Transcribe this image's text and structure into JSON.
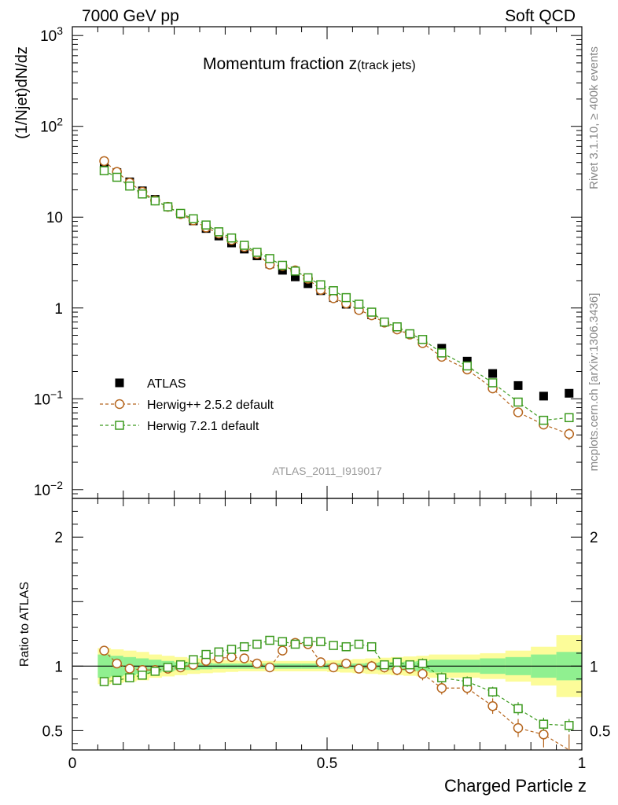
{
  "header": {
    "left": "7000 GeV pp",
    "right": "Soft QCD"
  },
  "side_text": {
    "rivet": "Rivet 3.1.10, ≥ 400k events",
    "mcplots": "mcplots.cern.ch [arXiv:1306.3436]"
  },
  "chart_data": [
    {
      "type": "scatter",
      "title": "Momentum fraction ",
      "title_var": "z",
      "title_sub": "(track jets)",
      "ylabel": "(1/Njet)dN/dz",
      "y_scale": "log",
      "ylim": [
        0.008,
        1250
      ],
      "xlim": [
        0,
        1
      ],
      "y_ticks": [
        {
          "v": 1000,
          "base": "10",
          "exp": "3"
        },
        {
          "v": 100,
          "base": "10",
          "exp": "2"
        },
        {
          "v": 10,
          "base": "10",
          "exp": ""
        },
        {
          "v": 1,
          "base": "1",
          "exp": ""
        },
        {
          "v": 0.1,
          "base": "10",
          "exp": "−1"
        },
        {
          "v": 0.01,
          "base": "10",
          "exp": "−2"
        }
      ],
      "watermark": "ATLAS_2011_I919017",
      "legend_position": "bottom-left",
      "x": [
        0.0625,
        0.0875,
        0.1125,
        0.1375,
        0.1625,
        0.1875,
        0.2125,
        0.2375,
        0.2625,
        0.2875,
        0.3125,
        0.3375,
        0.3625,
        0.3875,
        0.4125,
        0.4375,
        0.4625,
        0.4875,
        0.5125,
        0.5375,
        0.5625,
        0.5875,
        0.6125,
        0.6375,
        0.6625,
        0.6875,
        0.725,
        0.775,
        0.825,
        0.875,
        0.925,
        0.975
      ],
      "series": [
        {
          "name": "ATLAS",
          "marker": "filled-square",
          "color": "#000000",
          "dashed": false,
          "values": [
            37,
            31,
            24.5,
            19.5,
            15.7,
            13.0,
            10.9,
            9.1,
            7.5,
            6.2,
            5.2,
            4.45,
            3.75,
            3.05,
            2.6,
            2.2,
            1.85,
            1.55,
            1.3,
            1.1,
            0.98,
            0.84,
            0.7,
            0.6,
            0.52,
            0.44,
            0.36,
            0.26,
            0.19,
            0.14,
            0.107,
            0.115
          ]
        },
        {
          "name": "Herwig++ 2.5.2 default",
          "marker": "open-circle",
          "color": "#b5651d",
          "dashed": true,
          "values": [
            41.5,
            31.5,
            24.0,
            19.0,
            15.3,
            13.0,
            10.8,
            9.2,
            7.7,
            6.6,
            5.6,
            4.7,
            3.95,
            3.0,
            2.9,
            2.6,
            2.1,
            1.58,
            1.28,
            1.12,
            0.95,
            0.83,
            0.69,
            0.58,
            0.51,
            0.41,
            0.29,
            0.21,
            0.13,
            0.071,
            0.052,
            0.041
          ],
          "errors": [
            0,
            0,
            0,
            0,
            0,
            0,
            0,
            0,
            0,
            0,
            0,
            0,
            0,
            0,
            0,
            0,
            0,
            0,
            0,
            0,
            0,
            0,
            0,
            0,
            0,
            0.01,
            0.01,
            0.01,
            0.01,
            0.006,
            0.005,
            0.006
          ]
        },
        {
          "name": "Herwig 7.2.1 default",
          "marker": "open-square",
          "color": "#3c9a1e",
          "dashed": true,
          "values": [
            32.5,
            27.5,
            22.0,
            18.0,
            15.1,
            13.0,
            11.0,
            9.6,
            8.2,
            6.9,
            5.9,
            4.9,
            4.1,
            3.5,
            2.95,
            2.55,
            2.15,
            1.8,
            1.55,
            1.3,
            1.1,
            0.9,
            0.7,
            0.62,
            0.52,
            0.45,
            0.32,
            0.23,
            0.15,
            0.092,
            0.058,
            0.062
          ],
          "errors": [
            0,
            0,
            0,
            0,
            0,
            0,
            0,
            0,
            0,
            0,
            0,
            0,
            0,
            0,
            0,
            0,
            0,
            0,
            0,
            0,
            0,
            0,
            0,
            0,
            0,
            0.01,
            0.01,
            0.01,
            0.01,
            0.006,
            0.005,
            0.006
          ]
        }
      ]
    },
    {
      "type": "scatter",
      "ylabel": "Ratio to ATLAS",
      "xlabel": "Charged Particle z",
      "ylim": [
        0.35,
        2.3
      ],
      "xlim": [
        0,
        1
      ],
      "y_ticks": [
        2,
        1,
        0.5
      ],
      "x_ticks": [
        {
          "v": 0,
          "label": "0"
        },
        {
          "v": 0.5,
          "label": "0.5"
        },
        {
          "v": 1,
          "label": "1"
        }
      ],
      "bins": [
        0.05,
        0.075,
        0.1,
        0.125,
        0.15,
        0.175,
        0.2,
        0.225,
        0.25,
        0.275,
        0.3,
        0.325,
        0.35,
        0.375,
        0.4,
        0.425,
        0.45,
        0.475,
        0.5,
        0.525,
        0.55,
        0.575,
        0.6,
        0.625,
        0.65,
        0.675,
        0.7,
        0.75,
        0.8,
        0.85,
        0.9,
        0.95,
        1.0
      ],
      "band_stat": [
        0.09,
        0.08,
        0.07,
        0.06,
        0.05,
        0.04,
        0.03,
        0.03,
        0.025,
        0.02,
        0.02,
        0.02,
        0.02,
        0.02,
        0.02,
        0.02,
        0.02,
        0.02,
        0.02,
        0.02,
        0.02,
        0.025,
        0.03,
        0.03,
        0.035,
        0.04,
        0.05,
        0.05,
        0.06,
        0.07,
        0.09,
        0.11
      ],
      "band_total": [
        0.14,
        0.13,
        0.12,
        0.11,
        0.09,
        0.08,
        0.07,
        0.06,
        0.055,
        0.05,
        0.045,
        0.04,
        0.04,
        0.04,
        0.04,
        0.04,
        0.04,
        0.04,
        0.045,
        0.05,
        0.055,
        0.06,
        0.065,
        0.07,
        0.075,
        0.08,
        0.09,
        0.09,
        0.1,
        0.12,
        0.15,
        0.24
      ],
      "band_colors": {
        "stat": "#90f090",
        "total": "#fcfc99"
      },
      "series": [
        {
          "name": "Herwig++ 2.5.2 default",
          "marker": "open-circle",
          "color": "#b5651d",
          "values": [
            1.12,
            1.02,
            0.98,
            0.97,
            0.97,
            0.98,
            0.99,
            1.01,
            1.04,
            1.06,
            1.07,
            1.06,
            1.02,
            0.99,
            1.12,
            1.18,
            1.17,
            1.03,
            0.99,
            1.02,
            0.98,
            1.0,
            0.99,
            0.97,
            0.98,
            0.94,
            0.83,
            0.83,
            0.69,
            0.52,
            0.47,
            0.35
          ],
          "errors": [
            0,
            0,
            0,
            0,
            0,
            0,
            0,
            0,
            0,
            0,
            0,
            0,
            0,
            0,
            0,
            0,
            0,
            0.03,
            0.03,
            0.03,
            0.03,
            0.04,
            0.04,
            0.04,
            0.04,
            0.05,
            0.05,
            0.05,
            0.06,
            0.07,
            0.1,
            0.12
          ]
        },
        {
          "name": "Herwig 7.2.1 default",
          "marker": "open-square",
          "color": "#3c9a1e",
          "values": [
            0.88,
            0.89,
            0.91,
            0.93,
            0.96,
            0.99,
            1.01,
            1.05,
            1.09,
            1.11,
            1.13,
            1.15,
            1.17,
            1.2,
            1.19,
            1.17,
            1.19,
            1.19,
            1.16,
            1.15,
            1.17,
            1.15,
            1.01,
            1.03,
            1.01,
            1.02,
            0.91,
            0.88,
            0.8,
            0.67,
            0.55,
            0.54
          ],
          "errors": [
            0,
            0,
            0,
            0,
            0,
            0,
            0,
            0,
            0,
            0,
            0,
            0,
            0,
            0,
            0,
            0,
            0,
            0.02,
            0.02,
            0.02,
            0.02,
            0.02,
            0.03,
            0.03,
            0.03,
            0.04,
            0.04,
            0.04,
            0.04,
            0.05,
            0.05,
            0.05
          ]
        }
      ]
    }
  ]
}
